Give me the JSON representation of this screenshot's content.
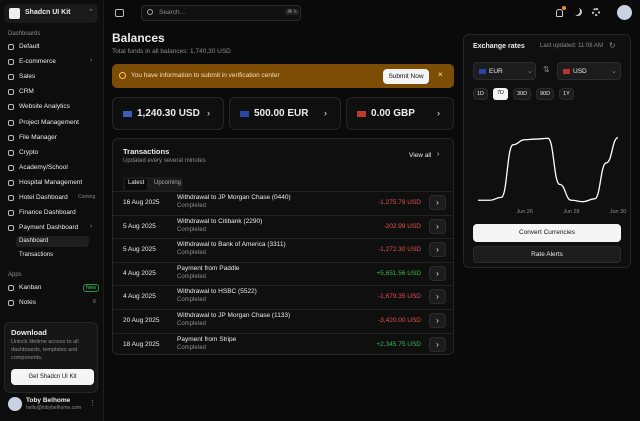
{
  "sidebar": {
    "brand": "Shadcn UI Kit",
    "sections": [
      {
        "title": "Dashboards",
        "items": [
          {
            "label": "Default"
          },
          {
            "label": "E-commerce",
            "chevron": true
          },
          {
            "label": "Sales"
          },
          {
            "label": "CRM"
          },
          {
            "label": "Website Analytics"
          },
          {
            "label": "Project Management"
          },
          {
            "label": "File Manager"
          },
          {
            "label": "Crypto"
          },
          {
            "label": "Academy/School"
          },
          {
            "label": "Hospital Management"
          },
          {
            "label": "Hotel Dashboard",
            "badge": "Coming"
          },
          {
            "label": "Finance Dashboard"
          },
          {
            "label": "Payment Dashboard",
            "chevron": true,
            "children": [
              "Dashboard",
              "Transactions"
            ]
          }
        ]
      },
      {
        "title": "Apps",
        "items": [
          {
            "label": "Kanban",
            "badge": "New"
          },
          {
            "label": "Notes",
            "badge": "8"
          }
        ]
      }
    ],
    "download": {
      "title": "Download",
      "text": "Unlock lifetime access to all dashboards, templates and components.",
      "button": "Get Shadcn UI Kit"
    },
    "user": {
      "name": "Toby Belhome",
      "email": "hello@tobybelhome.com"
    }
  },
  "header": {
    "search": "Search...",
    "shortcut": "⌘ k"
  },
  "page": {
    "title": "Balances",
    "subtitle": "Total funds in all balances: 1,740,30 USD",
    "alert": {
      "text": "You have information to submit in verification center",
      "button": "Submit Now"
    },
    "balances": [
      "1,240.30 USD",
      "500.00 EUR",
      "0.00 GBP"
    ]
  },
  "transactions": {
    "title": "Transactions",
    "subtitle": "Updated every several minutes",
    "view_all": "View all",
    "tabs": [
      "Latest",
      "Upcoming"
    ],
    "status": "Completed",
    "rows": [
      [
        "16 Aug 2025",
        "Withdrawal to JP Morgan Chase (0440)",
        "-1,275.79 USD"
      ],
      [
        "5 Aug 2025",
        "Withdrawal to Citibank (2290)",
        "-202.99 USD"
      ],
      [
        "5 Aug 2025",
        "Withdrawal to Bank of America (3311)",
        "-1,272.30 USD"
      ],
      [
        "4 Aug 2025",
        "Payment from Paddle",
        "+5,651.56 USD"
      ],
      [
        "4 Aug 2025",
        "Withdrawal to HSBC (5522)",
        "-1,679.35 USD"
      ],
      [
        "20 Aug 2025",
        "Withdrawal to JP Morgan Chase (1133)",
        "-3,420.00 USD"
      ],
      [
        "18 Aug 2025",
        "Payment from Stripe",
        "+2,345.75 USD"
      ]
    ]
  },
  "exchange": {
    "title": "Exchange rates",
    "updated": "Last updated: 11:08 AM",
    "from": "EUR",
    "to": "USD",
    "periods": [
      "1D",
      "7D",
      "30D",
      "90D",
      "1Y"
    ],
    "convert": "Convert Currencies",
    "alerts": "Rate Alerts",
    "chart": {
      "type": "line",
      "categories": [
        null,
        null,
        null,
        null,
        "Jun 26",
        null,
        null,
        null,
        "Jun 28",
        null,
        null,
        null,
        "Jun 30"
      ],
      "values": [
        8,
        8,
        12,
        85,
        92,
        93,
        94,
        30,
        8,
        6,
        10,
        60,
        95
      ],
      "ylim": [
        0,
        100
      ],
      "color": "#ffffff"
    }
  }
}
